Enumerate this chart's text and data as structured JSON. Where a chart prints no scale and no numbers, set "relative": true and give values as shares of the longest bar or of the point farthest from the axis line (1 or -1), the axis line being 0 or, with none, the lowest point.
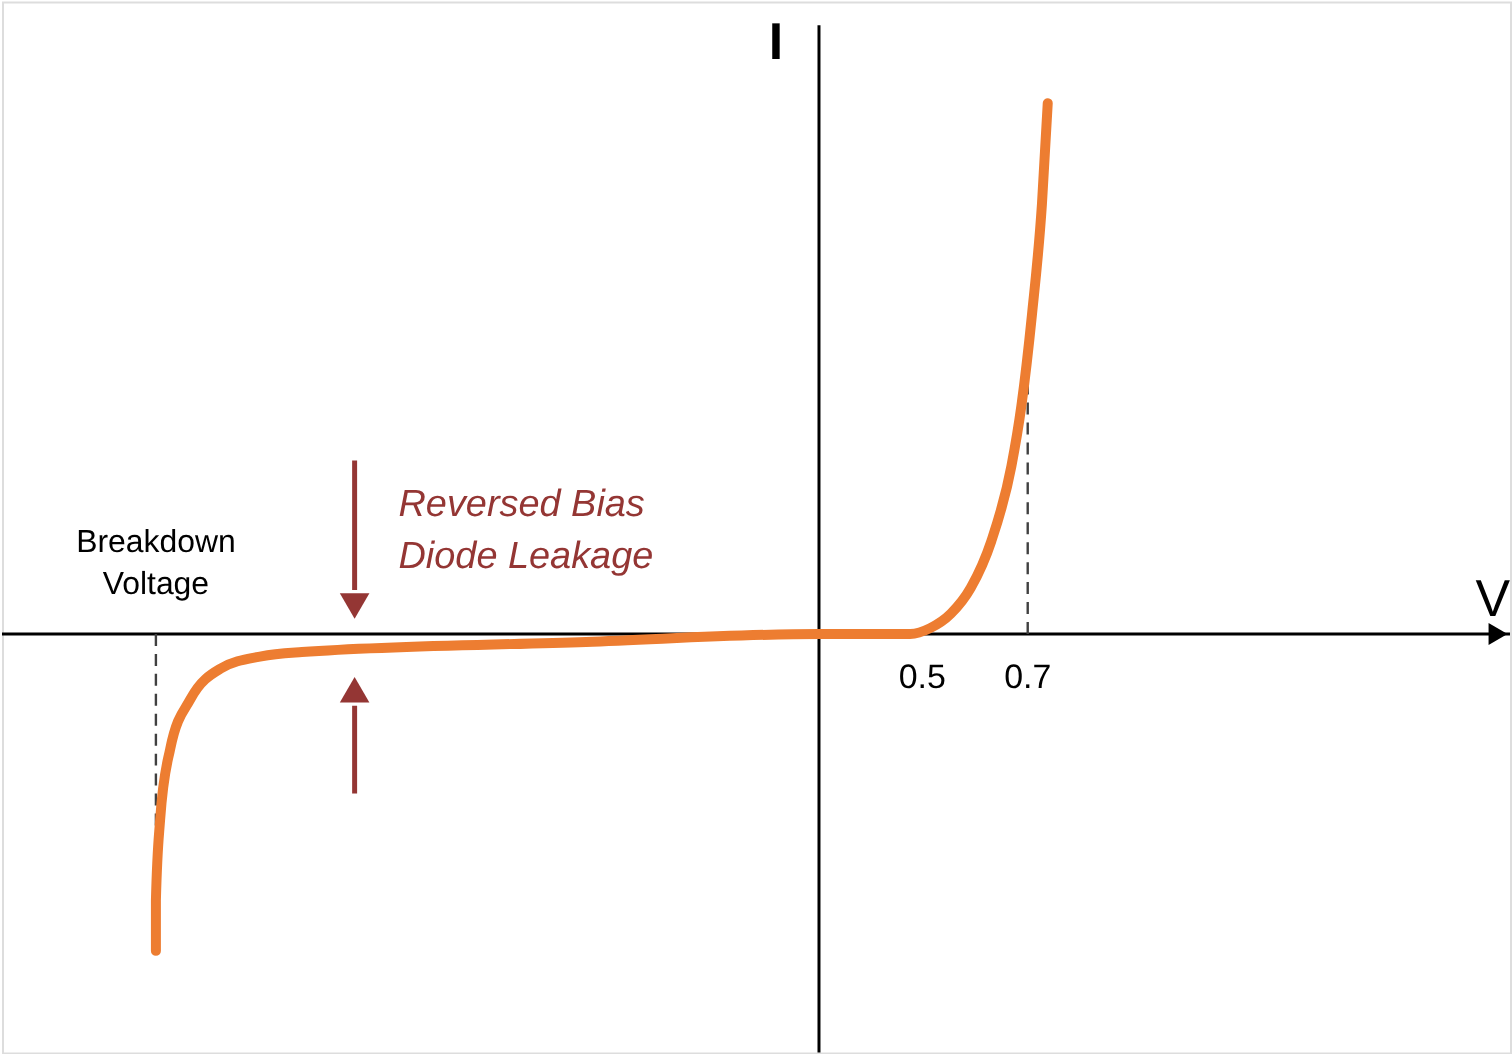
{
  "chart_data": {
    "type": "line",
    "relative": true,
    "xlabel": "V",
    "ylabel": "I",
    "x": [
      -0.954,
      -0.954,
      -0.946,
      -0.927,
      -0.888,
      -0.831,
      -0.754,
      -0.677,
      -0.138,
      0.304,
      0.477,
      0.515,
      0.554,
      0.592,
      0.631,
      0.669,
      0.688,
      0.708,
      0.727,
      0.738
    ],
    "series": [
      {
        "color": "#ed7d31",
        "values": [
          -0.597,
          -0.502,
          -0.35,
          -0.217,
          -0.122,
          -0.065,
          -0.042,
          -0.034,
          -0.015,
          0,
          0,
          0.011,
          0.038,
          0.087,
          0.175,
          0.316,
          0.43,
          0.601,
          0.81,
          1
        ]
      }
    ],
    "xlim": [
      -1.246,
      1.615
    ],
    "xticks": [
      0.5,
      0.7
    ],
    "ref_lines": [
      {
        "axis": "x",
        "value": 0.304,
        "color": "#000000",
        "line_style": "solid"
      },
      {
        "axis": "x",
        "value": -0.954,
        "label": "Breakdown\nVoltage",
        "color": "#404040",
        "line_style": "dashed"
      },
      {
        "axis": "x",
        "value": 0.7,
        "color": "#404040",
        "line_style": "dashed"
      }
    ],
    "annotations": [
      {
        "text": "Reversed Bias\nDiode Leakage",
        "x": -0.577,
        "y": -0.03
      }
    ]
  }
}
